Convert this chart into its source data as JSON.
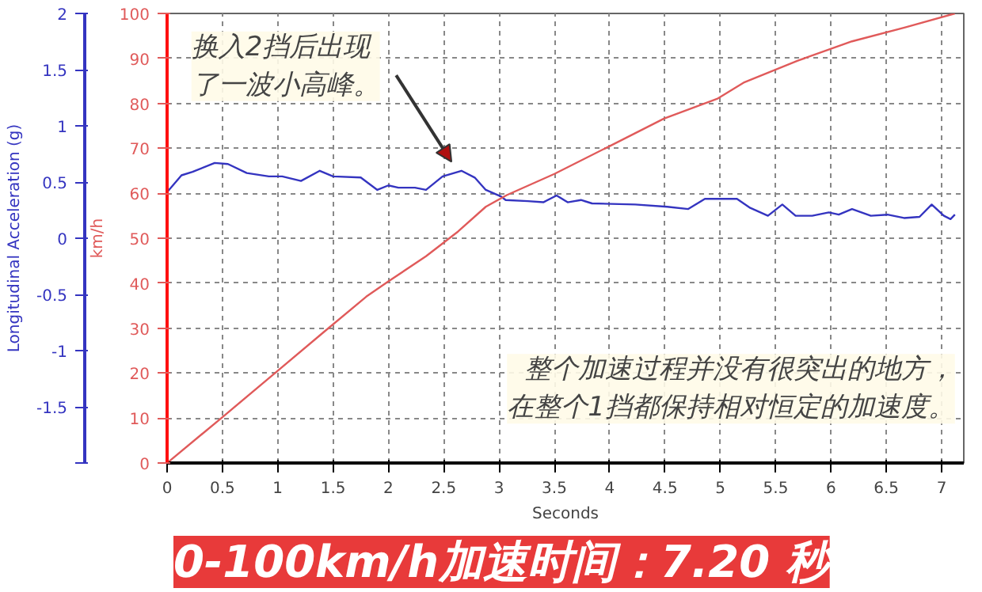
{
  "chart_data": {
    "type": "line",
    "title": "0-100km/h加速时间：7.20 秒",
    "xlabel": "Seconds",
    "ylabel": "Longitudinal Acceleration (g)",
    "y2label": "km/h",
    "xlim": [
      0,
      7.2
    ],
    "xticks": [
      0,
      0.5,
      1,
      1.5,
      2,
      2.5,
      3,
      3.5,
      4,
      4.5,
      5,
      5.5,
      6,
      6.5,
      7
    ],
    "ylim": [
      -2,
      2
    ],
    "yticks": [
      {
        "value": -2,
        "label": null
      },
      -1.5,
      -1,
      -0.5,
      0,
      0.5,
      1,
      1.5,
      2
    ],
    "y2lim": [
      0,
      100
    ],
    "y2ticks": [
      0,
      10,
      20,
      30,
      40,
      50,
      60,
      70,
      80,
      90,
      100
    ],
    "grid": true,
    "line_style": "solid",
    "annotations": [
      {
        "text": "换入2挡后出现了一波小高峰。",
        "x": 2.62,
        "y": 0.6
      },
      "整个加速过程并没有很突出的地方，在整个1挡都保持相对恒定的加速度。"
    ],
    "series": [
      {
        "color": "#3434c0",
        "x": [
          0,
          0.13,
          0.23,
          0.43,
          0.55,
          0.72,
          0.92,
          1.04,
          1.21,
          1.38,
          1.5,
          1.75,
          1.9,
          2.0,
          2.09,
          2.24,
          2.34,
          2.49,
          2.66,
          2.78,
          2.88,
          3.02,
          3.06,
          3.26,
          3.4,
          3.52,
          3.62,
          3.74,
          3.84,
          4.23,
          4.52,
          4.71,
          4.86,
          5.15,
          5.27,
          5.43,
          5.56,
          5.68,
          5.83,
          5.98,
          6.07,
          6.19,
          6.36,
          6.51,
          6.66,
          6.8,
          6.91,
          7.02,
          7.08,
          7.12
        ],
        "values": [
          0.41,
          0.56,
          0.59,
          0.67,
          0.66,
          0.58,
          0.55,
          0.55,
          0.51,
          0.6,
          0.55,
          0.54,
          0.43,
          0.47,
          0.45,
          0.45,
          0.43,
          0.55,
          0.6,
          0.54,
          0.43,
          0.37,
          0.34,
          0.33,
          0.32,
          0.38,
          0.32,
          0.34,
          0.31,
          0.3,
          0.28,
          0.26,
          0.35,
          0.35,
          0.27,
          0.2,
          0.3,
          0.2,
          0.2,
          0.23,
          0.21,
          0.26,
          0.2,
          0.21,
          0.18,
          0.19,
          0.3,
          0.2,
          0.17,
          0.21
        ]
      },
      {
        "color": "#e05a5a",
        "axis": "y2",
        "x": [
          0,
          0.5,
          0.99,
          1.41,
          1.8,
          2.0,
          2.34,
          2.63,
          2.88,
          3.07,
          3.5,
          4.0,
          4.49,
          4.97,
          5.21,
          5.7,
          6.19,
          6.67,
          7.12
        ],
        "values": [
          0,
          10.2,
          20.3,
          29,
          37,
          40.4,
          46,
          51.5,
          57,
          59.6,
          64.3,
          70.5,
          76.6,
          81,
          84.6,
          89.5,
          93.8,
          96.9,
          100
        ]
      }
    ]
  }
}
